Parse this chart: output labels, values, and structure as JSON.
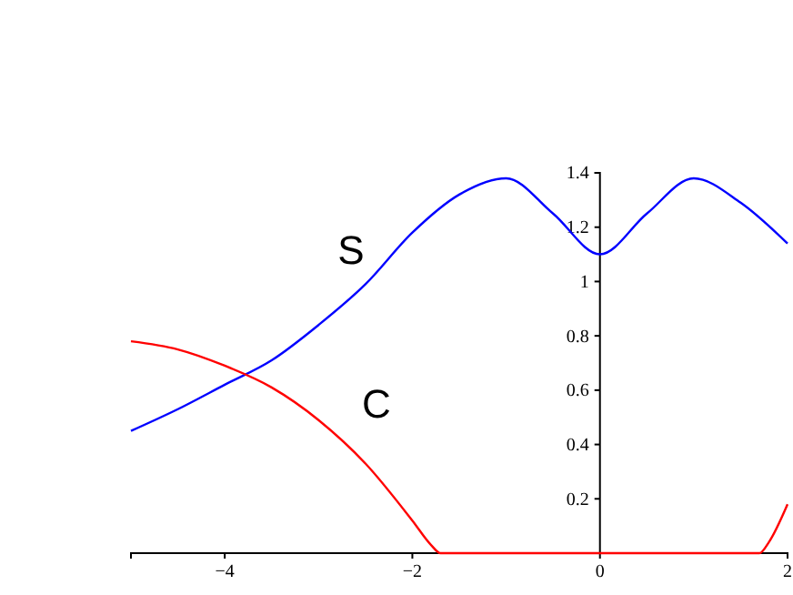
{
  "chart_data": {
    "type": "line",
    "xlim": [
      -5,
      2
    ],
    "ylim": [
      0,
      1.4
    ],
    "xticks": [
      {
        "value": -4,
        "label": "−4"
      },
      {
        "value": -2,
        "label": "−2"
      },
      {
        "value": 0,
        "label": "0"
      },
      {
        "value": 2,
        "label": "2"
      }
    ],
    "yticks": [
      {
        "value": 0,
        "label": null
      },
      0.2,
      0.4,
      0.6,
      0.8,
      1,
      1.2,
      1.4
    ],
    "grid": false,
    "legend": false,
    "marker": "none",
    "line_style": "solid",
    "series": [
      {
        "name": "S",
        "color": "#0000ff",
        "x": [
          -5,
          -4.5,
          -4,
          -3.5,
          -3,
          -2.5,
          -2,
          -1.5,
          -1,
          -0.5,
          0,
          0.5,
          1,
          1.5,
          2
        ],
        "values": [
          0.45,
          0.53,
          0.62,
          0.71,
          0.84,
          0.99,
          1.18,
          1.32,
          1.38,
          1.25,
          1.1,
          1.25,
          1.38,
          1.29,
          1.14
        ]
      },
      {
        "name": "C",
        "color": "#ff0000",
        "x": [
          -5,
          -4.5,
          -4,
          -3.5,
          -3,
          -2.5,
          -2,
          -1.8,
          -1.7,
          0,
          1.7,
          1.8,
          2
        ],
        "values": [
          0.78,
          0.75,
          0.69,
          0.61,
          0.49,
          0.33,
          0.12,
          0.03,
          0,
          0,
          0,
          0.04,
          0.18
        ]
      }
    ]
  }
}
